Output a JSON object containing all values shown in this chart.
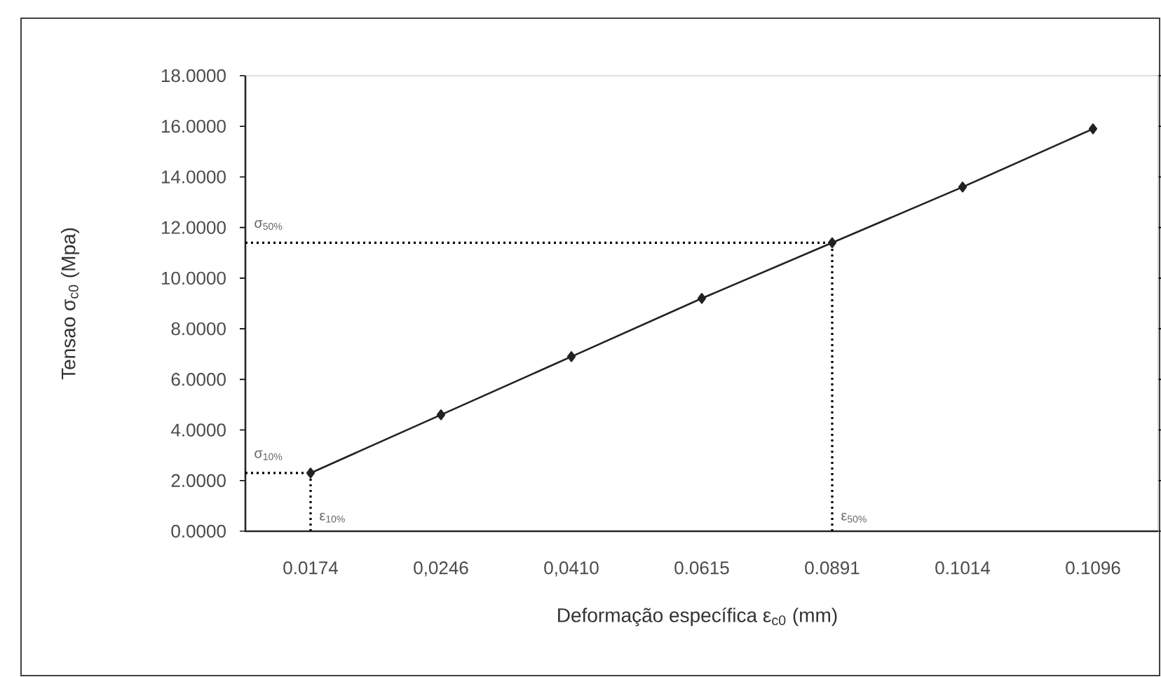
{
  "chart_data": {
    "type": "line",
    "xlabel": "Deformação específica  ε$_{c0}$ (mm)",
    "ylabel": "Tensao σ$_{c0}$  (Mpa)",
    "categories": [
      "0.0174",
      "0,0246",
      "0,0410",
      "0.0615",
      "0.0891",
      "0.1014",
      "0.1096"
    ],
    "values": [
      2.3,
      4.6,
      6.9,
      9.2,
      11.4,
      13.6,
      15.9
    ],
    "color": "#222222",
    "marker": "diamond",
    "line_style": "solid",
    "ylim": [
      0,
      18
    ],
    "yticks": [
      {
        "value": 0,
        "label": "0.0000"
      },
      {
        "value": 2,
        "label": "2.0000"
      },
      {
        "value": 4,
        "label": "4.0000"
      },
      {
        "value": 6,
        "label": "6.0000"
      },
      {
        "value": 8,
        "label": "8.0000"
      },
      {
        "value": 10,
        "label": "10.0000"
      },
      {
        "value": 12,
        "label": "12.0000"
      },
      {
        "value": 14,
        "label": "14.0000"
      },
      {
        "value": 16,
        "label": "16.0000"
      },
      {
        "value": 18,
        "label": "18.0000"
      }
    ],
    "ref_lines": [
      {
        "axis": "y",
        "value": 2.3,
        "label": "σ$_{10%}$",
        "color": "#000000",
        "line_style": "dotted"
      },
      {
        "axis": "y",
        "value": 11.4,
        "label": "σ$_{50%}$",
        "color": "#000000",
        "line_style": "dotted"
      },
      {
        "axis": "x",
        "value": "0.0174",
        "label": "ε$_{10%}$",
        "color": "#000000",
        "line_style": "dotted"
      },
      {
        "axis": "x",
        "value": "0.0891",
        "label": "ε$_{50%}$",
        "color": "#000000",
        "line_style": "dotted"
      }
    ]
  }
}
